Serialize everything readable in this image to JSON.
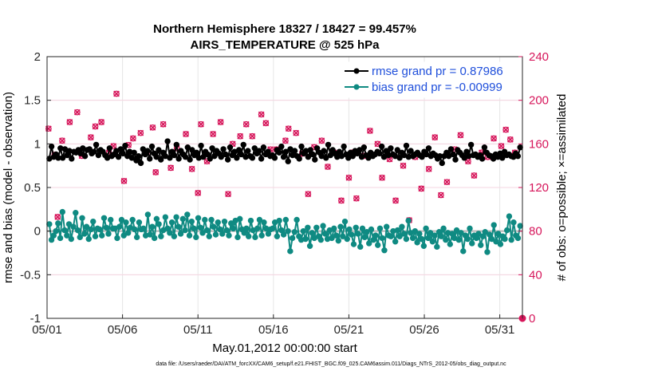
{
  "chart_data": {
    "type": "line",
    "title_line1": "Northern Hemisphere 18327 / 18427 = 99.457%",
    "title_line2": "AIRS_TEMPERATURE @ 525 hPa",
    "xlabel": "May.01,2012 00:00:00 start",
    "ylabel_left": "rmse and bias (model - observation)",
    "ylabel_right": "# of obs: o=possible; ×=assimilated",
    "footer": "data file: /Users/raeder/DAI/ATM_forcXX/CAM6_setup/f.e21.FHIST_BGC.f09_025.CAM6assim.011/Diags_NTrS_2012-05/obs_diag_output.nc",
    "x_range": [
      0,
      31.5
    ],
    "ylim_left": [
      -1,
      2
    ],
    "ylim_right": [
      0,
      240
    ],
    "x_ticks": [
      0,
      5,
      10,
      15,
      20,
      25,
      30
    ],
    "x_tick_labels": [
      "05/01",
      "05/06",
      "05/11",
      "05/16",
      "05/21",
      "05/26",
      "05/31"
    ],
    "y_left_ticks": [
      -1,
      -0.5,
      0,
      0.5,
      1,
      1.5,
      2
    ],
    "y_left_tick_labels": [
      "-1",
      "-0.5",
      "0",
      "0.5",
      "1",
      "1.5",
      "2"
    ],
    "y_right_ticks": [
      0,
      40,
      80,
      120,
      160,
      200,
      240
    ],
    "y_right_tick_labels": [
      "0",
      "40",
      "80",
      "120",
      "160",
      "200",
      "240"
    ],
    "grid": true,
    "legend_position": "top-right",
    "colors": {
      "rmse": "#000000",
      "bias": "#0f8a82",
      "obs": "#d6155a",
      "legend_text": "#1f4fdb",
      "zero_line": "#b4b4b4"
    },
    "series": [
      {
        "name": "rmse grand pr = 0.87986",
        "axis": "left",
        "values": [
          0.83,
          0.97,
          0.85,
          0.88,
          0.84,
          0.95,
          0.84,
          0.94,
          0.87,
          0.92,
          0.83,
          0.91,
          0.9,
          0.93,
          0.89,
          0.95,
          0.86,
          0.93,
          0.94,
          0.89,
          0.91,
          0.99,
          0.87,
          0.93,
          0.91,
          0.87,
          0.84,
          0.95,
          0.86,
          0.88,
          0.92,
          0.85,
          0.94,
          0.89,
          0.98,
          0.86,
          0.91,
          0.84,
          0.9,
          0.81,
          0.86,
          0.78,
          0.94,
          0.88,
          0.92,
          0.83,
          0.97,
          0.89,
          0.85,
          0.93,
          0.82,
          0.9,
          0.86,
          1.03,
          0.84,
          0.91,
          0.87,
          0.99,
          0.83,
          0.92,
          0.88,
          0.85,
          0.96,
          0.82,
          0.93,
          0.87,
          0.9,
          0.84,
          0.98,
          0.85,
          0.91,
          0.88,
          0.83,
          0.95,
          0.86,
          0.92,
          0.89,
          0.85,
          0.94,
          0.88,
          0.82,
          0.96,
          0.87,
          0.91,
          0.84,
          0.93,
          0.88,
          0.99,
          0.85,
          0.92,
          0.86,
          0.84,
          0.95,
          0.89,
          0.92,
          0.83,
          0.96,
          0.88,
          0.91,
          0.86,
          0.87,
          0.84,
          0.93,
          0.9,
          0.97,
          0.85,
          0.91,
          0.8,
          0.94,
          0.87,
          0.92,
          0.86,
          0.83,
          0.97,
          0.89,
          0.92,
          0.85,
          0.93,
          0.88,
          0.82,
          0.95,
          0.9,
          0.86,
          0.92,
          0.84,
          0.99,
          0.87,
          0.93,
          0.89,
          0.85,
          0.91,
          0.86,
          0.97,
          0.88,
          0.84,
          0.9,
          0.86,
          0.92,
          0.89,
          0.93,
          0.85,
          0.96,
          0.87,
          0.84,
          0.9,
          0.86,
          0.88,
          0.91,
          0.89,
          0.97,
          0.85,
          0.92,
          0.87,
          0.95,
          0.88,
          0.86,
          0.93,
          0.84,
          0.9,
          0.87,
          0.98,
          0.85,
          0.92,
          0.86,
          0.88,
          0.9,
          0.87,
          0.85,
          0.91,
          0.88,
          0.95,
          0.86,
          0.89,
          0.87,
          0.83,
          0.86,
          0.78,
          0.86,
          0.9,
          0.86,
          0.94,
          0.88,
          0.82,
          0.93,
          0.9,
          0.87,
          0.84,
          0.91,
          0.86,
          0.99,
          0.87,
          0.88,
          0.85,
          0.87,
          0.83,
          0.96,
          0.9,
          0.87,
          0.86,
          0.83,
          0.88,
          0.85,
          0.89,
          0.84,
          0.91,
          0.87,
          0.88,
          0.86,
          0.85,
          0.89,
          0.86,
          0.96
        ]
      },
      {
        "name": "bias grand pr = -0.00999",
        "axis": "left",
        "values": [
          0.08,
          -0.1,
          -0.05,
          0.0,
          0.09,
          -0.08,
          0.22,
          0.01,
          -0.05,
          0.08,
          -0.09,
          0.05,
          0.21,
          0.01,
          -0.07,
          0.15,
          -0.03,
          0.05,
          -0.09,
          0.02,
          0.11,
          -0.06,
          0.03,
          0.02,
          -0.05,
          0.15,
          0.04,
          -0.03,
          0.13,
          0.03,
          0.03,
          -0.08,
          0.05,
          0.13,
          -0.05,
          0.1,
          -0.02,
          0.04,
          0.13,
          0.02,
          -0.07,
          0.1,
          0.02,
          0.03,
          -0.05,
          0.19,
          -0.04,
          0.05,
          -0.08,
          0.14,
          0.08,
          -0.06,
          0.01,
          0.16,
          0.03,
          -0.02,
          0.1,
          -0.06,
          0.16,
          0.05,
          -0.03,
          0.14,
          0.01,
          0.19,
          -0.05,
          0.11,
          0.03,
          -0.07,
          0.15,
          0.04,
          -0.02,
          0.13,
          0.01,
          -0.06,
          0.13,
          0.05,
          -0.04,
          0.1,
          0.02,
          -0.03,
          0.11,
          0.01,
          -0.05,
          0.09,
          0.03,
          0.12,
          -0.07,
          0.14,
          0.02,
          -0.02,
          0.03,
          -0.06,
          0.12,
          0.01,
          -0.07,
          0.03,
          0.13,
          -0.05,
          0.1,
          0.03,
          -0.03,
          0.02,
          0.03,
          0.1,
          -0.06,
          0.12,
          0.01,
          -0.04,
          0.13,
          0.0,
          -0.23,
          -0.08,
          -0.01,
          0.13,
          -0.06,
          -0.1,
          0.0,
          -0.09,
          0.04,
          -0.17,
          -0.02,
          -0.08,
          0.04,
          -0.06,
          -0.1,
          0.06,
          -0.03,
          -0.09,
          0.01,
          -0.08,
          0.03,
          -0.05,
          -0.11,
          0.05,
          -0.06,
          0.11,
          -0.09,
          0.02,
          -0.04,
          -0.15,
          0.04,
          -0.03,
          -0.18,
          0.03,
          -0.07,
          -0.01,
          -0.14,
          0.02,
          -0.1,
          -0.05,
          -0.16,
          0.03,
          -0.08,
          -0.22,
          0.05,
          -0.05,
          -0.06,
          0.0,
          -0.12,
          0.01,
          -0.06,
          0.05,
          -0.03,
          -0.09,
          0.12,
          -0.02,
          -0.08,
          0.0,
          -0.13,
          -0.03,
          -0.09,
          -0.17,
          0.03,
          -0.08,
          -0.02,
          -0.12,
          -0.05,
          -0.18,
          -0.01,
          -0.06,
          0.03,
          -0.1,
          -0.02,
          -0.15,
          -0.03,
          -0.08,
          0.01,
          -0.1,
          -0.02,
          -0.23,
          -0.05,
          -0.09,
          0.03,
          -0.14,
          -0.05,
          -0.08,
          -0.03,
          -0.16,
          -0.06,
          -0.01,
          -0.24,
          -0.04,
          -0.09,
          0.07,
          -0.12,
          -0.03,
          -0.15,
          -0.06,
          -0.09,
          0.01,
          0.17,
          -0.1,
          0.1,
          -0.05,
          -0.08,
          0.06
        ]
      }
    ],
    "obs_points": {
      "axis": "right",
      "x": [
        0.1,
        0.5,
        0.7,
        1.0,
        1.5,
        2.0,
        2.3,
        2.9,
        3.2,
        3.6,
        4.1,
        4.4,
        4.6,
        5.1,
        5.4,
        5.7,
        6.2,
        6.6,
        7.0,
        7.2,
        7.7,
        8.2,
        8.6,
        9.2,
        9.6,
        10.0,
        10.2,
        10.6,
        11.0,
        11.5,
        12.0,
        12.3,
        12.8,
        13.2,
        13.6,
        14.2,
        14.5,
        14.8,
        15.2,
        15.8,
        16.0,
        16.5,
        16.9,
        17.3,
        17.7,
        18.2,
        18.6,
        19.0,
        19.5,
        20.0,
        20.2,
        20.5,
        21.0,
        21.4,
        21.9,
        22.2,
        22.7,
        23.1,
        23.6,
        24.0,
        24.4,
        24.8,
        25.3,
        25.7,
        26.1,
        26.5,
        27.0,
        27.4,
        27.9,
        28.3,
        28.8,
        29.2,
        29.6,
        30.1,
        30.4,
        30.7,
        31.0
      ],
      "values": [
        174,
        150,
        93,
        163,
        180,
        189,
        149,
        166,
        176,
        180,
        152,
        158,
        206,
        126,
        159,
        165,
        170,
        152,
        175,
        134,
        178,
        138,
        156,
        169,
        137,
        115,
        178,
        144,
        169,
        180,
        114,
        160,
        167,
        178,
        167,
        187,
        179,
        155,
        155,
        163,
        174,
        170,
        151,
        114,
        157,
        163,
        139,
        152,
        108,
        129,
        152,
        110,
        149,
        172,
        160,
        129,
        146,
        108,
        140,
        90,
        148,
        119,
        137,
        166,
        113,
        125,
        155,
        168,
        144,
        131,
        152,
        148,
        165,
        158,
        173,
        164,
        152
      ]
    }
  }
}
